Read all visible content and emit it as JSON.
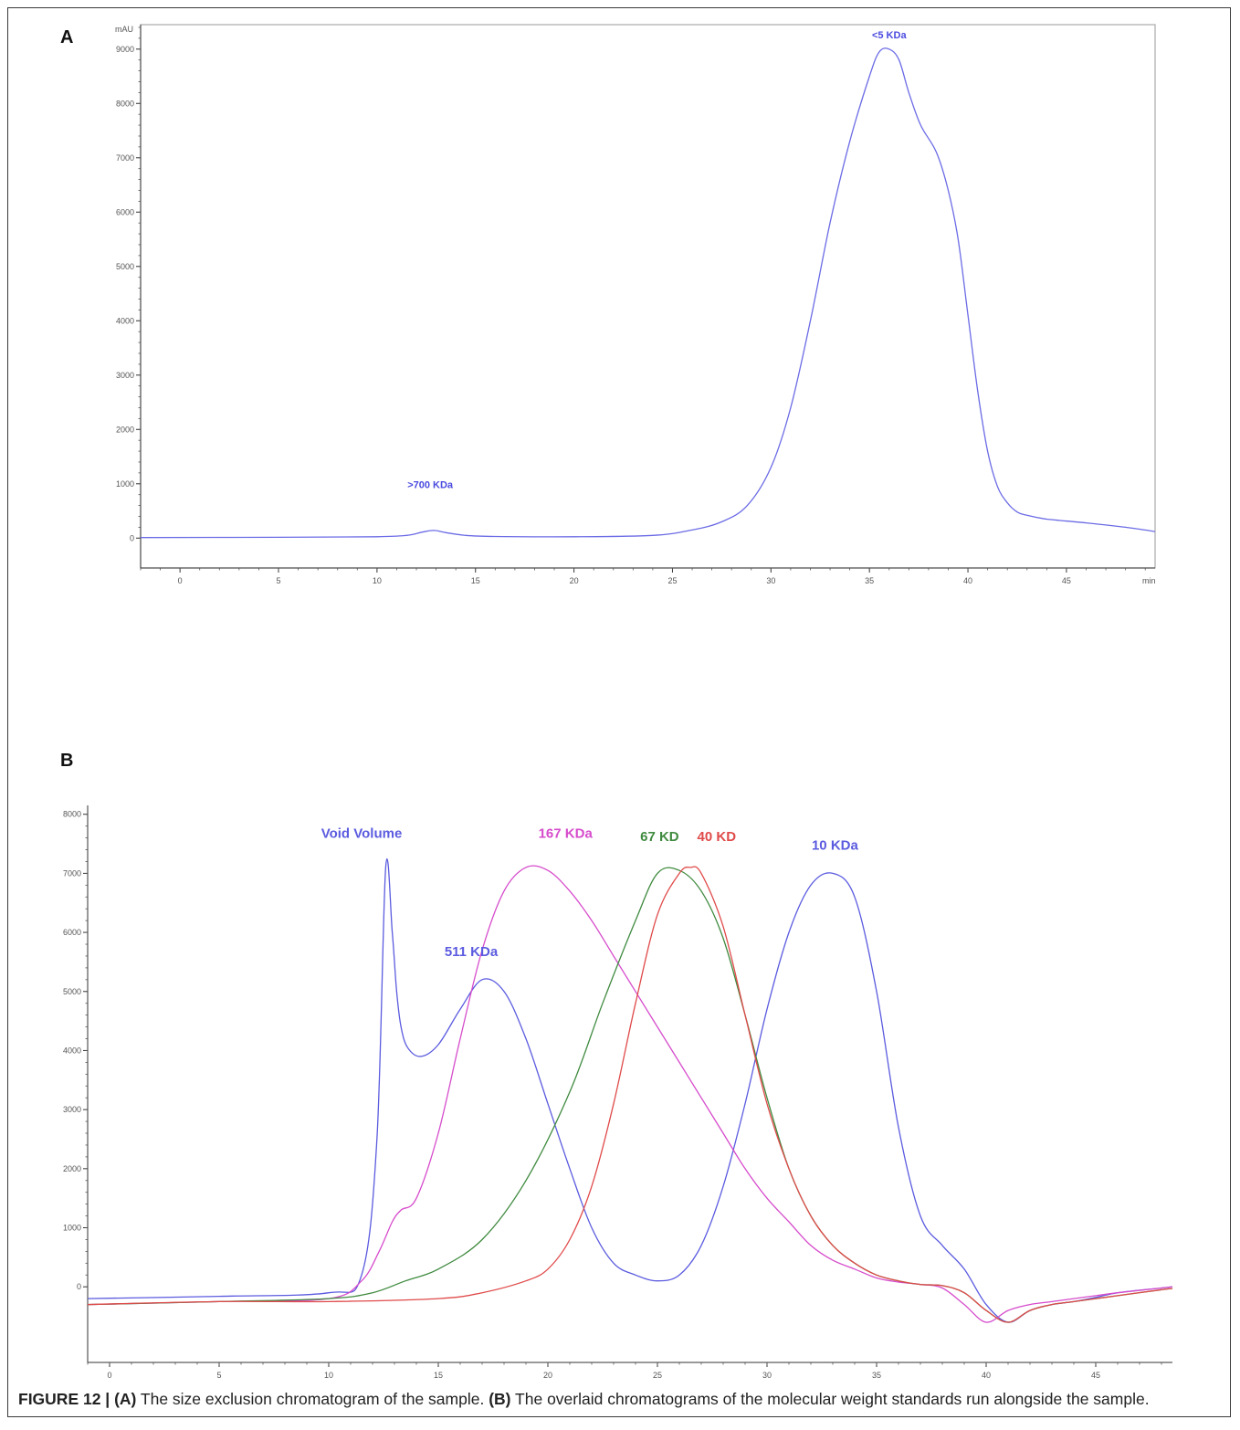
{
  "panels": {
    "a_letter": "A",
    "b_letter": "B"
  },
  "chart_data": [
    {
      "type": "line",
      "panel": "A",
      "ylabel": "mAU",
      "xunit": "min",
      "xlim": [
        -2,
        49.5
      ],
      "ylim": [
        -550,
        9450
      ],
      "xticks": [
        0,
        5,
        10,
        15,
        20,
        25,
        30,
        35,
        40,
        45
      ],
      "yticks": [
        0,
        1000,
        2000,
        3000,
        4000,
        5000,
        6000,
        7000,
        8000,
        9000
      ],
      "grid": false,
      "series": [
        {
          "color": "#6b6be6",
          "x": [
            -2,
            5,
            10,
            11.5,
            12.3,
            12.9,
            13.5,
            14.5,
            16,
            20,
            24,
            26,
            27.5,
            28.8,
            30,
            31,
            32,
            33,
            34,
            35,
            35.5,
            36,
            36.5,
            37,
            37.6,
            38.4,
            39,
            39.5,
            40,
            40.5,
            41,
            41.5,
            42,
            42.5,
            43,
            44,
            46,
            48,
            49.5
          ],
          "y": [
            10,
            15,
            25,
            50,
            110,
            140,
            100,
            50,
            30,
            25,
            50,
            150,
            300,
            600,
            1300,
            2400,
            4000,
            5800,
            7300,
            8500,
            8950,
            9000,
            8800,
            8200,
            7600,
            7100,
            6400,
            5500,
            4100,
            2700,
            1600,
            950,
            650,
            480,
            420,
            350,
            280,
            200,
            120
          ]
        }
      ],
      "annotations": [
        {
          "text": "<5 KDa",
          "x": 36,
          "y": 9200
        },
        {
          "text": ">700 KDa",
          "x": 12.7,
          "y": 920
        }
      ]
    },
    {
      "type": "line",
      "panel": "B",
      "xlim": [
        -1,
        48.5
      ],
      "ylim": [
        -1280,
        8150
      ],
      "xticks": [
        0,
        5,
        10,
        15,
        20,
        25,
        30,
        35,
        40,
        45
      ],
      "yticks": [
        0,
        1000,
        2000,
        3000,
        4000,
        5000,
        6000,
        7000,
        8000
      ],
      "grid": false,
      "series": [
        {
          "color": "#5b5be0",
          "x": [
            -1,
            5,
            10,
            11.5,
            12.2,
            12.6,
            12.9,
            13.1,
            13.3,
            13.6,
            14.2,
            15,
            16,
            17,
            18,
            19,
            20,
            21,
            22,
            23,
            24,
            25,
            26,
            27,
            28,
            29,
            30,
            31,
            32,
            33,
            34,
            35,
            36,
            37,
            38,
            39,
            40,
            41,
            42,
            43,
            44,
            45,
            46,
            48,
            48.5
          ],
          "y": [
            -200,
            -160,
            -100,
            200,
            2500,
            7100,
            6000,
            5000,
            4400,
            4050,
            3900,
            4100,
            4700,
            5200,
            5000,
            4200,
            3100,
            2000,
            1000,
            400,
            200,
            100,
            200,
            700,
            1700,
            3100,
            4700,
            6000,
            6800,
            7000,
            6600,
            5000,
            2700,
            1200,
            700,
            300,
            -300,
            -600,
            -400,
            -300,
            -250,
            -180,
            -100,
            -20,
            0
          ]
        },
        {
          "color": "#d64ccc",
          "x": [
            -1,
            5,
            10,
            11.5,
            12.3,
            12.9,
            13.3,
            14,
            15,
            16,
            17,
            18,
            19,
            20,
            21,
            22,
            23,
            24,
            25,
            26,
            27,
            28,
            29,
            30,
            31,
            32,
            33,
            34,
            35,
            36,
            37,
            38,
            39,
            40,
            41,
            42,
            43,
            44,
            45,
            46,
            48,
            48.5
          ],
          "y": [
            -300,
            -250,
            -200,
            100,
            600,
            1100,
            1300,
            1500,
            2600,
            4200,
            5700,
            6700,
            7100,
            7050,
            6700,
            6200,
            5600,
            5000,
            4400,
            3800,
            3200,
            2600,
            2000,
            1500,
            1100,
            700,
            450,
            300,
            150,
            80,
            40,
            -20,
            -300,
            -600,
            -400,
            -300,
            -250,
            -200,
            -150,
            -100,
            -20,
            0
          ]
        },
        {
          "color": "#3f8a3f",
          "x": [
            -1,
            5,
            10,
            12,
            13.5,
            15,
            17,
            19,
            21,
            22.5,
            24,
            25,
            26,
            27,
            28,
            29,
            30,
            31,
            32,
            33,
            34,
            35,
            36,
            37,
            38,
            39,
            40,
            41,
            42,
            43,
            44,
            45,
            46,
            48,
            48.5
          ],
          "y": [
            -300,
            -250,
            -200,
            -100,
            100,
            300,
            800,
            1800,
            3300,
            4800,
            6200,
            7000,
            7050,
            6700,
            5900,
            4600,
            3200,
            2000,
            1200,
            700,
            400,
            200,
            100,
            40,
            20,
            -100,
            -400,
            -600,
            -400,
            -300,
            -250,
            -200,
            -150,
            -50,
            -30
          ]
        },
        {
          "color": "#e04a4a",
          "x": [
            -1,
            5,
            10,
            15,
            17,
            19,
            20,
            21,
            22,
            23,
            24,
            25,
            26,
            26.5,
            27,
            28,
            29,
            30,
            31,
            32,
            33,
            34,
            35,
            36,
            37,
            38,
            39,
            40,
            41,
            42,
            43,
            44,
            45,
            46,
            48,
            48.5
          ],
          "y": [
            -300,
            -250,
            -250,
            -200,
            -100,
            100,
            300,
            800,
            1700,
            3100,
            4800,
            6300,
            7000,
            7100,
            7000,
            6100,
            4600,
            3100,
            2000,
            1200,
            700,
            400,
            200,
            100,
            40,
            20,
            -100,
            -400,
            -600,
            -400,
            -300,
            -250,
            -200,
            -150,
            -50,
            -30
          ]
        }
      ],
      "annotations": [
        {
          "text": "Void Volume",
          "x": 11.5,
          "y": 7600,
          "color": "#5b5be0"
        },
        {
          "text": "511 KDa",
          "x": 16.5,
          "y": 5600,
          "color": "#5b5be0"
        },
        {
          "text": "167 KDa",
          "x": 20.8,
          "y": 7600,
          "color": "#d64ccc"
        },
        {
          "text": "67 KD",
          "x": 25.1,
          "y": 7550,
          "color": "#3f8a3f"
        },
        {
          "text": "40 KD",
          "x": 27.7,
          "y": 7550,
          "color": "#e04a4a"
        },
        {
          "text": "10 KDa",
          "x": 33.1,
          "y": 7400,
          "color": "#5b5be0"
        }
      ]
    }
  ],
  "caption": {
    "prefix": "FIGURE 12 | ",
    "a_tag": "(A)",
    "a_text": " The size exclusion chromatogram of the sample. ",
    "b_tag": "(B)",
    "b_text": " The overlaid chromatograms of the molecular weight standards run alongside the sample."
  }
}
